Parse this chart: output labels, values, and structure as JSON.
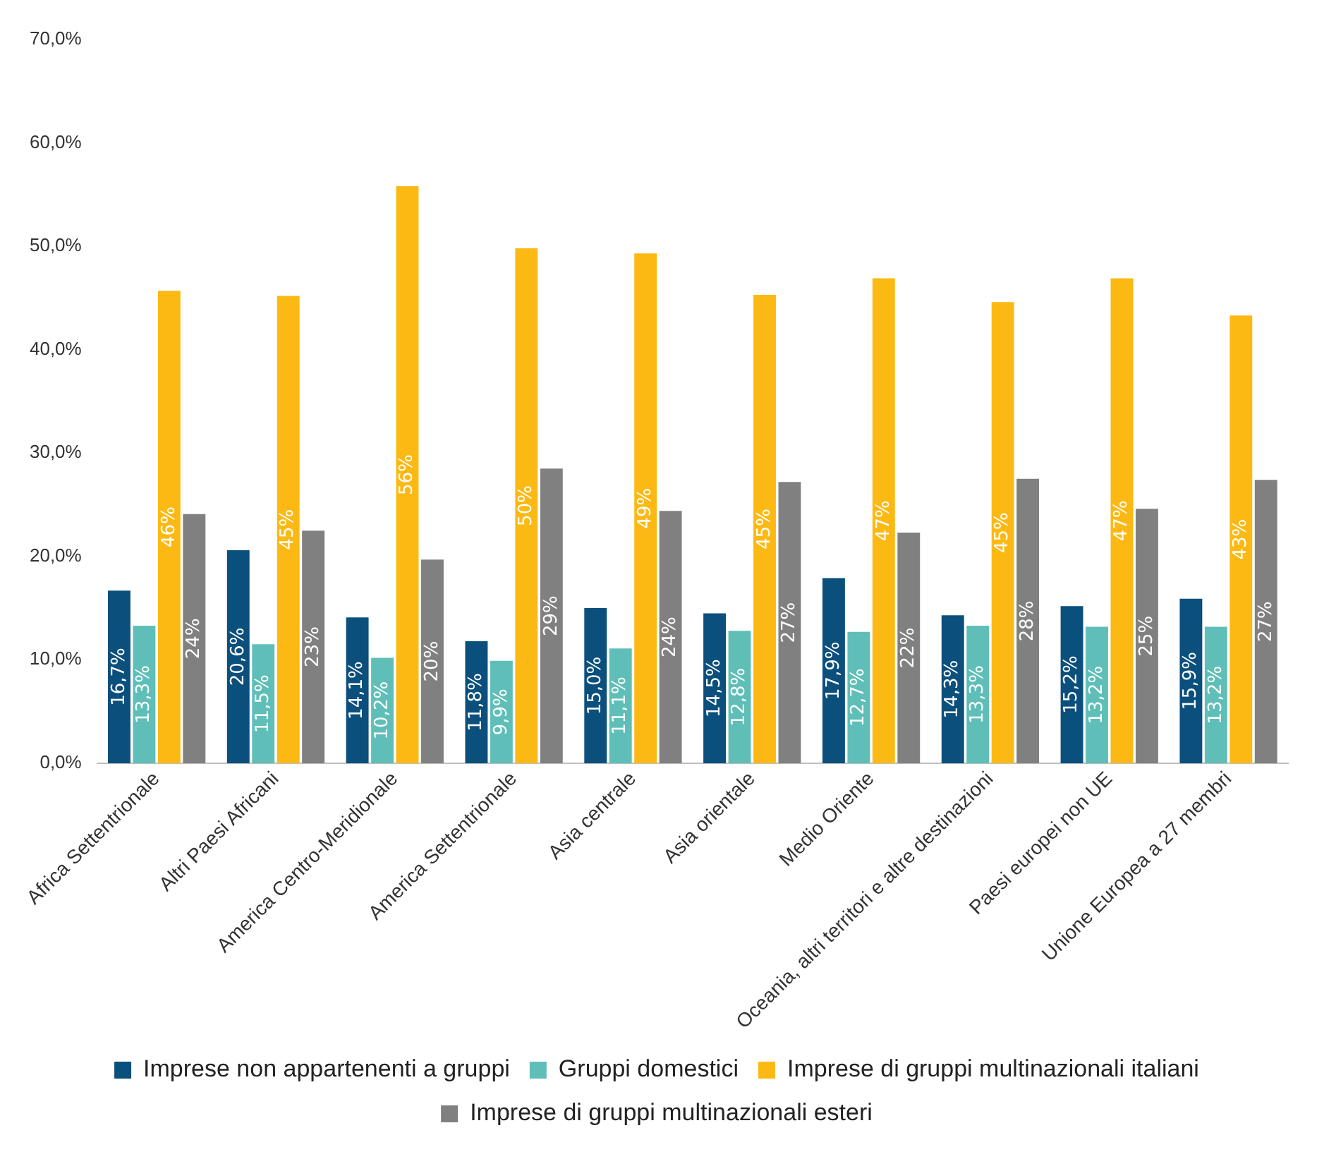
{
  "chart_data": {
    "type": "bar",
    "categories": [
      "Africa Settentrionale",
      "Altri Paesi Africani",
      "America Centro-Meridionale",
      "America Settentrionale",
      "Asia centrale",
      "Asia orientale",
      "Medio Oriente",
      "Oceania, altri territori e altre destinazioni",
      "Paesi europei non UE",
      "Unione Europea a 27 membri"
    ],
    "series": [
      {
        "name": "Imprese non appartenenti a gruppi",
        "color": "#0b4f7c",
        "values": [
          16.7,
          20.6,
          14.1,
          11.8,
          15.0,
          14.5,
          17.9,
          14.3,
          15.2,
          15.9
        ],
        "value_labels": [
          "16,7%",
          "20,6%",
          "14,1%",
          "11,8%",
          "15,0%",
          "14,5%",
          "17,9%",
          "14,3%",
          "15,2%",
          "15,9%"
        ]
      },
      {
        "name": "Gruppi domestici",
        "color": "#5fbfb8",
        "values": [
          13.3,
          11.5,
          10.2,
          9.9,
          11.1,
          12.8,
          12.7,
          13.3,
          13.2,
          13.2
        ],
        "value_labels": [
          "13,3%",
          "11,5%",
          "10,2%",
          "9,9%",
          "11,1%",
          "12,8%",
          "12,7%",
          "13,3%",
          "13,2%",
          "13,2%"
        ]
      },
      {
        "name": "Imprese di gruppi multinazionali italiani",
        "color": "#fdb913",
        "values": [
          45.7,
          45.2,
          55.8,
          49.8,
          49.3,
          45.3,
          46.9,
          44.6,
          46.9,
          43.3
        ],
        "value_labels": [
          "46%",
          "45%",
          "56%",
          "50%",
          "49%",
          "45%",
          "47%",
          "45%",
          "47%",
          "43%"
        ]
      },
      {
        "name": "Imprese di gruppi multinazionali esteri",
        "color": "#808080",
        "values": [
          24.1,
          22.5,
          19.7,
          28.5,
          24.4,
          27.2,
          22.3,
          27.5,
          24.6,
          27.4
        ],
        "value_labels": [
          "24%",
          "23%",
          "20%",
          "29%",
          "24%",
          "27%",
          "22%",
          "28%",
          "25%",
          "27%"
        ]
      }
    ],
    "ylim": [
      0,
      70
    ],
    "yticks": [
      {
        "value": 0,
        "label": "0,0%"
      },
      {
        "value": 10,
        "label": "10,0%"
      },
      {
        "value": 20,
        "label": "20,0%"
      },
      {
        "value": 30,
        "label": "30,0%"
      },
      {
        "value": 40,
        "label": "40,0%"
      },
      {
        "value": 50,
        "label": "50,0%"
      },
      {
        "value": 60,
        "label": "60,0%"
      },
      {
        "value": 70,
        "label": "70,0%"
      }
    ],
    "grid": false,
    "legend": "bottom"
  }
}
